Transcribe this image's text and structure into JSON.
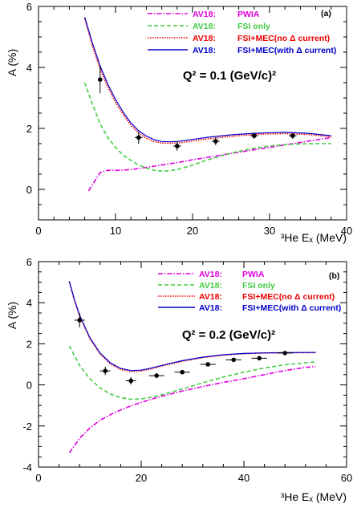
{
  "chart_data": [
    {
      "type": "line",
      "panel_label": "(a)",
      "annotation": "Q² = 0.1 (GeV/c)²",
      "xlabel": "³He Eₓ  (MeV)",
      "ylabel": "A   (%)",
      "xlim": [
        0,
        40
      ],
      "ylim": [
        -1,
        6
      ],
      "xticks": [
        "0",
        "10",
        "20",
        "30",
        "40"
      ],
      "yticks": [
        "0",
        "2",
        "4",
        "6"
      ],
      "legend_position": "top-right",
      "legend": [
        {
          "model": "AV18:",
          "label": "PWIA",
          "color": "#e000e0",
          "dash": "dashdot"
        },
        {
          "model": "AV18:",
          "label": "FSI only",
          "color": "#44cc44",
          "dash": "dashed"
        },
        {
          "model": "AV18:",
          "label": "FSI+MEC(no Δ current)",
          "color": "#ee0000",
          "dash": "dotted"
        },
        {
          "model": "AV18:",
          "label": "FSI+MEC(with Δ current)",
          "color": "#0000cc",
          "dash": "solid"
        }
      ],
      "series": [
        {
          "name": "PWIA",
          "x": [
            6.5,
            7,
            8,
            9,
            10,
            12,
            14,
            16,
            18,
            20,
            22,
            25,
            28,
            30,
            33,
            35,
            38
          ],
          "y": [
            -0.05,
            0.15,
            0.55,
            0.63,
            0.62,
            0.65,
            0.72,
            0.8,
            0.88,
            0.97,
            1.05,
            1.18,
            1.3,
            1.38,
            1.5,
            1.58,
            1.7
          ]
        },
        {
          "name": "FSI only",
          "x": [
            6,
            7,
            8,
            9,
            10,
            11,
            12,
            13,
            14,
            15,
            16,
            17,
            18,
            19,
            20,
            22,
            24,
            26,
            28,
            30,
            32,
            34,
            36,
            38
          ],
          "y": [
            3.5,
            2.8,
            2.15,
            1.7,
            1.38,
            1.12,
            0.95,
            0.8,
            0.7,
            0.63,
            0.6,
            0.61,
            0.65,
            0.72,
            0.8,
            0.97,
            1.12,
            1.25,
            1.35,
            1.42,
            1.47,
            1.49,
            1.5,
            1.5
          ]
        },
        {
          "name": "FSI+MEC(no Δ current)",
          "x": [
            6,
            7,
            8,
            9,
            10,
            11,
            12,
            13,
            14,
            15,
            16,
            17,
            18,
            20,
            22,
            25,
            28,
            30,
            32,
            35,
            38
          ],
          "y": [
            5.6,
            4.7,
            3.95,
            3.35,
            2.85,
            2.45,
            2.1,
            1.85,
            1.68,
            1.57,
            1.52,
            1.51,
            1.52,
            1.59,
            1.66,
            1.74,
            1.8,
            1.82,
            1.83,
            1.8,
            1.73
          ]
        },
        {
          "name": "FSI+MEC(with Δ current)",
          "x": [
            6,
            7,
            8,
            9,
            10,
            11,
            12,
            13,
            14,
            15,
            16,
            17,
            18,
            20,
            22,
            25,
            28,
            30,
            32,
            35,
            38
          ],
          "y": [
            5.65,
            4.8,
            4.05,
            3.45,
            2.95,
            2.53,
            2.18,
            1.92,
            1.75,
            1.63,
            1.57,
            1.56,
            1.57,
            1.64,
            1.71,
            1.79,
            1.84,
            1.86,
            1.87,
            1.84,
            1.76
          ]
        }
      ],
      "points": [
        {
          "x": 8,
          "y": 3.6,
          "yerr": 0.45,
          "xerr": 0
        },
        {
          "x": 13,
          "y": 1.7,
          "yerr": 0.2,
          "xerr": 0.5
        },
        {
          "x": 18,
          "y": 1.42,
          "yerr": 0.15,
          "xerr": 0.5
        },
        {
          "x": 23,
          "y": 1.58,
          "yerr": 0.13,
          "xerr": 0.5
        },
        {
          "x": 28,
          "y": 1.76,
          "yerr": 0.1,
          "xerr": 0.5
        },
        {
          "x": 33,
          "y": 1.76,
          "yerr": 0.1,
          "xerr": 0.5
        }
      ]
    },
    {
      "type": "line",
      "panel_label": "(b)",
      "annotation": "Q² = 0.2 (GeV/c)²",
      "xlabel": "³He Eₓ  (MeV)",
      "ylabel": "A   (%)",
      "xlim": [
        0,
        60
      ],
      "ylim": [
        -4,
        6
      ],
      "xticks": [
        "0",
        "20",
        "40",
        "60"
      ],
      "yticks": [
        "-4",
        "-2",
        "0",
        "2",
        "4",
        "6"
      ],
      "legend_position": "top-right",
      "legend": [
        {
          "model": "AV18:",
          "label": "PWIA",
          "color": "#e000e0",
          "dash": "dashdot"
        },
        {
          "model": "AV18:",
          "label": "FSI only",
          "color": "#44cc44",
          "dash": "dashed"
        },
        {
          "model": "AV18:",
          "label": "FSI+MEC(no Δ current)",
          "color": "#ee0000",
          "dash": "dotted"
        },
        {
          "model": "AV18:",
          "label": "FSI+MEC(with Δ current)",
          "color": "#0000cc",
          "dash": "solid"
        }
      ],
      "series": [
        {
          "name": "PWIA",
          "x": [
            6,
            8,
            10,
            12,
            14,
            16,
            18,
            20,
            24,
            28,
            32,
            36,
            40,
            44,
            48,
            52,
            54
          ],
          "y": [
            -3.3,
            -2.6,
            -2.1,
            -1.72,
            -1.45,
            -1.22,
            -1.02,
            -0.85,
            -0.55,
            -0.3,
            -0.08,
            0.12,
            0.3,
            0.5,
            0.7,
            0.85,
            0.9
          ]
        },
        {
          "name": "FSI only",
          "x": [
            6,
            8,
            10,
            12,
            14,
            16,
            18,
            20,
            22,
            24,
            28,
            32,
            36,
            40,
            44,
            48,
            52,
            54
          ],
          "y": [
            1.9,
            0.95,
            0.3,
            -0.15,
            -0.45,
            -0.62,
            -0.7,
            -0.68,
            -0.6,
            -0.48,
            -0.2,
            0.1,
            0.38,
            0.62,
            0.82,
            0.98,
            1.08,
            1.12
          ]
        },
        {
          "name": "FSI+MEC(no Δ current)",
          "x": [
            6,
            7,
            8,
            10,
            12,
            14,
            16,
            18,
            20,
            22,
            24,
            28,
            32,
            36,
            40,
            44,
            48,
            52,
            54
          ],
          "y": [
            5.0,
            4.1,
            3.35,
            2.25,
            1.5,
            1.02,
            0.75,
            0.65,
            0.68,
            0.78,
            0.92,
            1.15,
            1.33,
            1.45,
            1.52,
            1.55,
            1.56,
            1.57,
            1.57
          ]
        },
        {
          "name": "FSI+MEC(with Δ current)",
          "x": [
            6,
            7,
            8,
            10,
            12,
            14,
            16,
            18,
            20,
            22,
            24,
            28,
            32,
            36,
            40,
            44,
            48,
            52,
            54
          ],
          "y": [
            5.05,
            4.15,
            3.4,
            2.3,
            1.55,
            1.07,
            0.8,
            0.7,
            0.72,
            0.82,
            0.95,
            1.18,
            1.35,
            1.47,
            1.53,
            1.56,
            1.57,
            1.58,
            1.58
          ]
        }
      ],
      "points": [
        {
          "x": 8,
          "y": 3.15,
          "yerr": 0.35,
          "xerr": 1.0
        },
        {
          "x": 13,
          "y": 0.68,
          "yerr": 0.2,
          "xerr": 1.0
        },
        {
          "x": 18,
          "y": 0.2,
          "yerr": 0.18,
          "xerr": 1.0
        },
        {
          "x": 23,
          "y": 0.45,
          "yerr": 0.12,
          "xerr": 1.5
        },
        {
          "x": 28,
          "y": 0.62,
          "yerr": 0.1,
          "xerr": 1.5
        },
        {
          "x": 33,
          "y": 1.0,
          "yerr": 0.1,
          "xerr": 1.5
        },
        {
          "x": 38,
          "y": 1.22,
          "yerr": 0.08,
          "xerr": 1.5
        },
        {
          "x": 43,
          "y": 1.3,
          "yerr": 0.08,
          "xerr": 1.5
        },
        {
          "x": 48,
          "y": 1.55,
          "yerr": 0.08,
          "xerr": 1.5
        }
      ]
    }
  ]
}
